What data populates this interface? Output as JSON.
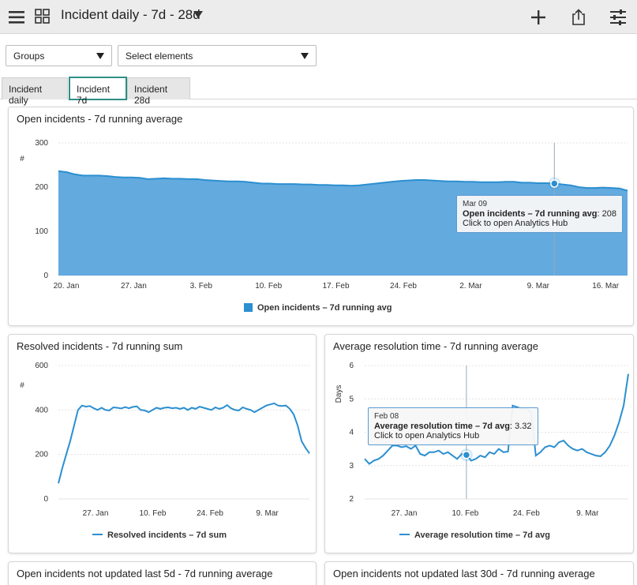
{
  "header": {
    "title": "Incident daily - 7d - 28d",
    "menu_icon": "hamburger-menu-icon",
    "grid_icon": "dashboard-grid-icon",
    "add_icon": "plus-icon",
    "share_icon": "share-icon",
    "settings_icon": "sliders-icon"
  },
  "filters": {
    "groups": "Groups",
    "elements": "Select elements"
  },
  "tabs": [
    {
      "label": "Incident daily",
      "active": false
    },
    {
      "label": "Incident 7d",
      "active": true
    },
    {
      "label": "Incident 28d",
      "active": false
    }
  ],
  "colors": {
    "accent": "#2f8f86",
    "series": "#2b8fd0",
    "series_fill": "#63aadf"
  },
  "panels": {
    "open_7d": {
      "title": "Open incidents - 7d running average",
      "legend": "Open incidents – 7d running avg",
      "y_unit": "#",
      "tooltip": {
        "date": "Mar 09",
        "series": "Open incidents – 7d running avg",
        "value": ": 208",
        "hint": "Click to open Analytics Hub"
      }
    },
    "resolved_7d": {
      "title": "Resolved incidents - 7d running sum",
      "legend": "Resolved incidents – 7d sum",
      "y_unit": "#"
    },
    "avg_res": {
      "title": "Average resolution time - 7d running average",
      "legend": "Average resolution time – 7d avg",
      "y_unit": "Days",
      "tooltip": {
        "date": "Feb 08",
        "series": "Average resolution time – 7d avg",
        "value": ": 3.32",
        "hint": "Click to open Analytics Hub"
      }
    },
    "not_updated_5d": {
      "title": "Open incidents not updated last 5d - 7d running average"
    },
    "not_updated_30d": {
      "title": "Open incidents not updated last 30d - 7d running average"
    }
  },
  "chart_data": [
    {
      "type": "area",
      "title": "Open incidents - 7d running average",
      "ylabel": "#",
      "ylim": [
        0,
        300
      ],
      "yticks": [
        0,
        100,
        200,
        300
      ],
      "xticks": [
        "20. Jan",
        "27. Jan",
        "3. Feb",
        "10. Feb",
        "17. Feb",
        "24. Feb",
        "2. Mar",
        "9. Mar",
        "16. Mar"
      ],
      "x_start_day": 15,
      "series": [
        {
          "name": "Open incidents – 7d running avg",
          "values": [
            236,
            234,
            229,
            226,
            226,
            226,
            225,
            223,
            222,
            222,
            221,
            218,
            219,
            220,
            219,
            219,
            218,
            218,
            216,
            215,
            214,
            213,
            213,
            212,
            210,
            208,
            208,
            207,
            207,
            207,
            206,
            206,
            205,
            205,
            204,
            204,
            203,
            204,
            206,
            208,
            210,
            212,
            214,
            215,
            216,
            216,
            215,
            214,
            213,
            213,
            212,
            212,
            211,
            211,
            211,
            212,
            212,
            210,
            210,
            209,
            209,
            208,
            206,
            204,
            200,
            198,
            198,
            199,
            198,
            197,
            192
          ]
        }
      ],
      "grid": true,
      "legend_position": "bottom"
    },
    {
      "type": "line",
      "title": "Resolved incidents - 7d running sum",
      "ylabel": "#",
      "ylim": [
        0,
        600
      ],
      "yticks": [
        0,
        200,
        400,
        600
      ],
      "xticks": [
        "27. Jan",
        "10. Feb",
        "24. Feb",
        "9. Mar"
      ],
      "x_start_day": 15,
      "series": [
        {
          "name": "Resolved incidents – 7d sum",
          "values": [
            70,
            140,
            200,
            260,
            330,
            400,
            420,
            415,
            418,
            408,
            400,
            410,
            400,
            398,
            412,
            410,
            407,
            413,
            408,
            414,
            416,
            400,
            398,
            390,
            400,
            410,
            405,
            410,
            412,
            408,
            410,
            405,
            410,
            400,
            410,
            405,
            415,
            410,
            405,
            400,
            412,
            405,
            410,
            422,
            408,
            400,
            398,
            412,
            405,
            400,
            390,
            400,
            410,
            420,
            425,
            430,
            420,
            418,
            420,
            405,
            380,
            330,
            260,
            230,
            205
          ]
        }
      ],
      "grid": true,
      "legend_position": "bottom"
    },
    {
      "type": "line",
      "title": "Average resolution time - 7d running average",
      "ylabel": "Days",
      "ylim": [
        2,
        6
      ],
      "yticks": [
        2,
        3,
        4,
        5,
        6
      ],
      "xticks": [
        "27. Jan",
        "10. Feb",
        "24. Feb",
        "9. Mar"
      ],
      "x_start_day": 15,
      "series": [
        {
          "name": "Average resolution time – 7d avg",
          "values": [
            3.2,
            3.05,
            3.15,
            3.2,
            3.3,
            3.45,
            3.6,
            3.6,
            3.55,
            3.58,
            3.5,
            3.6,
            3.35,
            3.3,
            3.4,
            3.4,
            3.45,
            3.35,
            3.4,
            3.3,
            3.2,
            3.35,
            3.32,
            3.15,
            3.2,
            3.3,
            3.25,
            3.4,
            3.35,
            3.5,
            3.4,
            3.42,
            4.8,
            4.75,
            4.7,
            4.72,
            4.6,
            3.3,
            3.4,
            3.55,
            3.6,
            3.55,
            3.7,
            3.75,
            3.6,
            3.5,
            3.45,
            3.5,
            3.4,
            3.35,
            3.3,
            3.28,
            3.4,
            3.6,
            3.9,
            4.3,
            4.8,
            5.75
          ]
        }
      ],
      "grid": true,
      "legend_position": "bottom"
    }
  ]
}
